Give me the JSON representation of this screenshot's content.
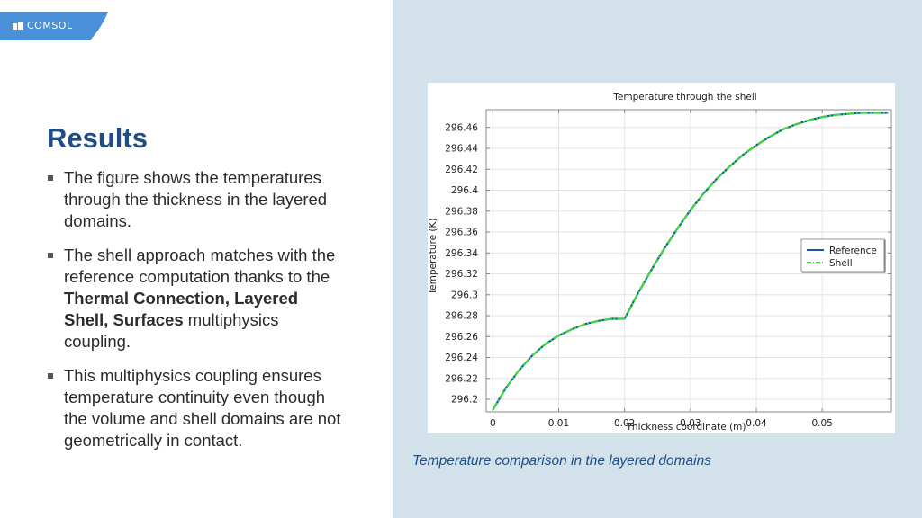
{
  "brand": {
    "name": "COMSOL",
    "color": "#4a90d9"
  },
  "slide": {
    "title": "Results",
    "bullets": [
      {
        "parts": [
          {
            "text": "The figure shows the temperatures through the thickness in the layered domains.",
            "bold": false
          }
        ]
      },
      {
        "parts": [
          {
            "text": "The shell approach matches with the reference computation thanks to the ",
            "bold": false
          },
          {
            "text": "Thermal Connection, Layered Shell, Surfaces",
            "bold": true
          },
          {
            "text": " multiphysics coupling.",
            "bold": false
          }
        ]
      },
      {
        "parts": [
          {
            "text": "This multiphysics coupling ensures temperature continuity even though the volume and shell domains are not geometrically in contact.",
            "bold": false
          }
        ]
      }
    ],
    "caption": "Temperature comparison in the layered domains"
  },
  "chart_data": {
    "type": "line",
    "title": "Temperature through the shell",
    "xlabel": "Thickness coordinate (m)",
    "ylabel": "Temperature (K)",
    "xlim": [
      -0.001,
      0.0605
    ],
    "ylim": [
      296.188,
      296.477
    ],
    "xticks": [
      0,
      0.01,
      0.02,
      0.03,
      0.04,
      0.05
    ],
    "xtick_labels": [
      "0",
      "0.01",
      "0.02",
      "0.03",
      "0.04",
      "0.05"
    ],
    "yticks": [
      296.2,
      296.22,
      296.24,
      296.26,
      296.28,
      296.3,
      296.32,
      296.34,
      296.36,
      296.38,
      296.4,
      296.42,
      296.44,
      296.46
    ],
    "ytick_labels": [
      "296.2",
      "296.22",
      "296.24",
      "296.26",
      "296.28",
      "296.3",
      "296.32",
      "296.34",
      "296.36",
      "296.38",
      "296.4",
      "296.42",
      "296.44",
      "296.46"
    ],
    "grid": true,
    "legend": {
      "position": "right",
      "entries": [
        "Reference",
        "Shell"
      ]
    },
    "series": [
      {
        "name": "Reference",
        "color": "#1f4fa8",
        "style": "solid",
        "x": [
          0,
          0.002,
          0.004,
          0.006,
          0.008,
          0.01,
          0.012,
          0.014,
          0.016,
          0.018,
          0.02,
          0.022,
          0.024,
          0.026,
          0.028,
          0.03,
          0.032,
          0.034,
          0.036,
          0.038,
          0.04,
          0.042,
          0.044,
          0.046,
          0.048,
          0.05,
          0.052,
          0.054,
          0.056,
          0.058,
          0.06
        ],
        "y": [
          296.19,
          296.211,
          296.228,
          296.242,
          296.253,
          296.261,
          296.267,
          296.272,
          296.275,
          296.277,
          296.277,
          296.301,
          296.323,
          296.344,
          296.363,
          296.381,
          296.397,
          296.411,
          296.423,
          296.434,
          296.443,
          296.451,
          296.458,
          296.463,
          296.467,
          296.47,
          296.472,
          296.473,
          296.474,
          296.474,
          296.474
        ]
      },
      {
        "name": "Shell",
        "color": "#33e02b",
        "style": "dashdot",
        "x": [
          0,
          0.002,
          0.004,
          0.006,
          0.008,
          0.01,
          0.012,
          0.014,
          0.016,
          0.018,
          0.02,
          0.022,
          0.024,
          0.026,
          0.028,
          0.03,
          0.032,
          0.034,
          0.036,
          0.038,
          0.04,
          0.042,
          0.044,
          0.046,
          0.048,
          0.05,
          0.052,
          0.054,
          0.056,
          0.058,
          0.06
        ],
        "y": [
          296.19,
          296.211,
          296.228,
          296.242,
          296.253,
          296.261,
          296.267,
          296.272,
          296.275,
          296.277,
          296.277,
          296.301,
          296.323,
          296.344,
          296.363,
          296.381,
          296.397,
          296.411,
          296.423,
          296.434,
          296.443,
          296.451,
          296.458,
          296.463,
          296.467,
          296.47,
          296.472,
          296.473,
          296.474,
          296.474,
          296.474
        ]
      }
    ]
  }
}
